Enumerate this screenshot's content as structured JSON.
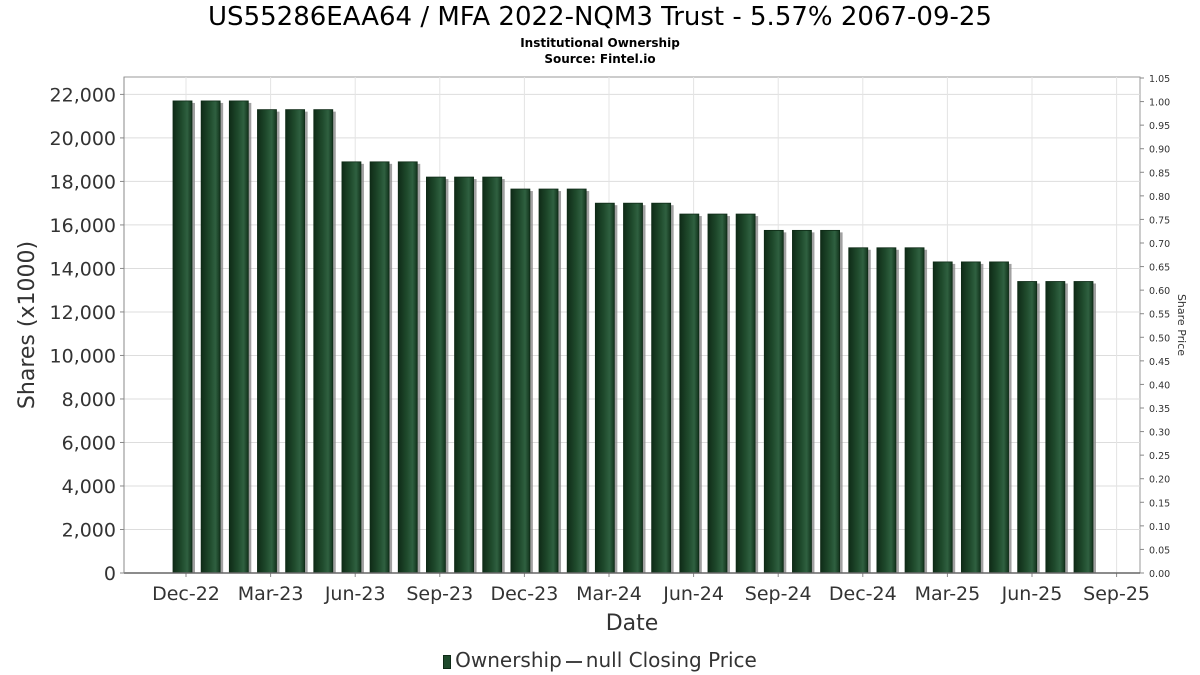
{
  "title": "US55286EAA64 / MFA 2022-NQM3 Trust - 5.57% 2067-09-25",
  "subtitle": "Institutional Ownership",
  "source": "Source: Fintel.io",
  "legend": {
    "ownership_label": "Ownership",
    "price_label": "null Closing Price"
  },
  "chart_data": {
    "type": "bar",
    "xlabel": "Date",
    "ylabel": "Shares (x1000)",
    "y2label": "Share Price",
    "ylim": [
      0,
      22800
    ],
    "y2lim": [
      0,
      1.05
    ],
    "grid": true,
    "legend_position": "bottom",
    "yticks": [
      0,
      2000,
      4000,
      6000,
      8000,
      10000,
      12000,
      14000,
      16000,
      18000,
      20000,
      22000
    ],
    "ytick_labels": [
      "0",
      "2,000",
      "4,000",
      "6,000",
      "8,000",
      "10,000",
      "12,000",
      "14,000",
      "16,000",
      "18,000",
      "20,000",
      "22,000"
    ],
    "y2ticks": [
      "0.00",
      "0.05",
      "0.10",
      "0.15",
      "0.20",
      "0.25",
      "0.30",
      "0.35",
      "0.40",
      "0.45",
      "0.50",
      "0.55",
      "0.60",
      "0.65",
      "0.70",
      "0.75",
      "0.80",
      "0.85",
      "0.90",
      "0.95",
      "1.00",
      "1.05"
    ],
    "xticks": [
      "Dec-22",
      "Mar-23",
      "Jun-23",
      "Sep-23",
      "Dec-23",
      "Mar-24",
      "Jun-24",
      "Sep-24",
      "Dec-24",
      "Mar-25",
      "Jun-25",
      "Sep-25"
    ],
    "bar_color": "#1f4a2c",
    "series": [
      {
        "name": "Ownership",
        "values": [
          21700,
          21700,
          21700,
          21300,
          21300,
          21300,
          18900,
          18900,
          18900,
          18200,
          18200,
          18200,
          17650,
          17650,
          17650,
          17000,
          17000,
          17000,
          16500,
          16500,
          16500,
          15750,
          15750,
          15750,
          14950,
          14950,
          14950,
          14300,
          14300,
          14300,
          13400,
          13400,
          13400
        ]
      }
    ]
  }
}
